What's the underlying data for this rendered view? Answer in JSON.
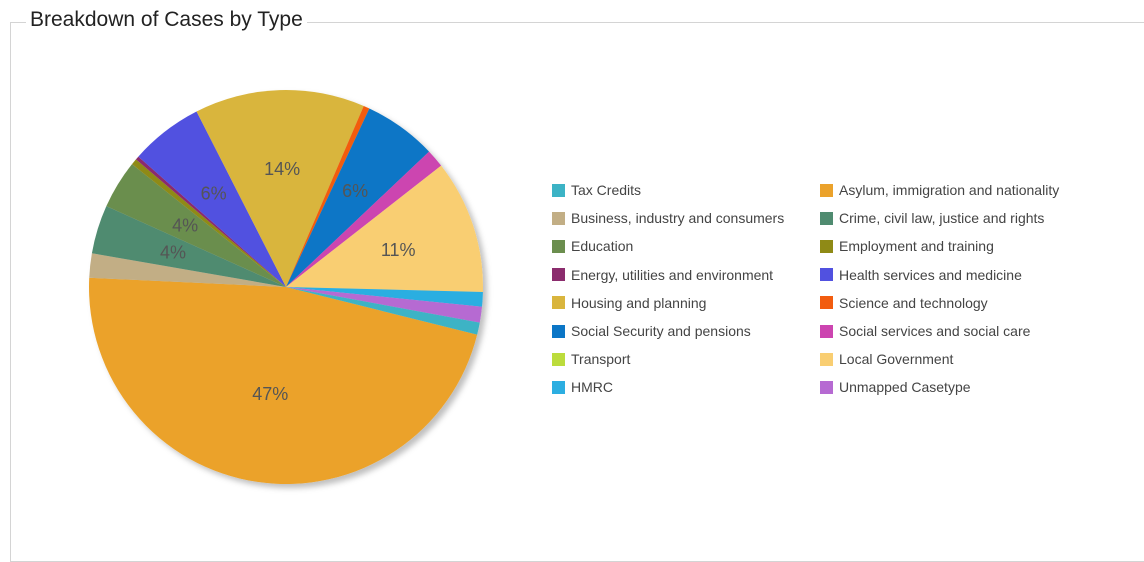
{
  "panel": {
    "title": "Breakdown of Cases by Type"
  },
  "chart_data": {
    "type": "pie",
    "title": "Breakdown of Cases by Type",
    "legend_position": "right",
    "slices": [
      {
        "label": "Asylum, immigration and nationality",
        "value": 47,
        "color": "#EBA22B",
        "display": "47%"
      },
      {
        "label": "Business, industry and consumers",
        "value": 2,
        "color": "#C2AE85",
        "display": ""
      },
      {
        "label": "Crime, civil law, justice and rights",
        "value": 4,
        "color": "#4F8B70",
        "display": "4%"
      },
      {
        "label": "Education",
        "value": 4,
        "color": "#6B8E4E",
        "display": "4%"
      },
      {
        "label": "Employment and training",
        "value": 0.5,
        "color": "#8F8A16",
        "display": ""
      },
      {
        "label": "Energy, utilities and environment",
        "value": 0.3,
        "color": "#8B2C6D",
        "display": ""
      },
      {
        "label": "Health services and medicine",
        "value": 6,
        "color": "#5151E0",
        "display": "6%"
      },
      {
        "label": "Housing and planning",
        "value": 14,
        "color": "#D9B53D",
        "display": "14%"
      },
      {
        "label": "Science and technology",
        "value": 0.5,
        "color": "#F25C0F",
        "display": ""
      },
      {
        "label": "Social Security and pensions",
        "value": 6,
        "color": "#0B76C6",
        "display": "6%"
      },
      {
        "label": "Social services and social care",
        "value": 1.5,
        "color": "#CC44B0",
        "display": ""
      },
      {
        "label": "Transport",
        "value": 0,
        "color": "#BCDC3C",
        "display": ""
      },
      {
        "label": "Local Government",
        "value": 11,
        "color": "#F9CE72",
        "display": "11%"
      },
      {
        "label": "HMRC",
        "value": 1.2,
        "color": "#2CAEE1",
        "display": ""
      },
      {
        "label": "Unmapped Casetype",
        "value": 1.3,
        "color": "#B66AD2",
        "display": ""
      },
      {
        "label": "Tax Credits",
        "value": 1,
        "color": "#3CB3C5",
        "display": ""
      }
    ],
    "legend": [
      {
        "label": "Tax Credits",
        "color": "#3CB3C5"
      },
      {
        "label": "Asylum, immigration and nationality",
        "color": "#EBA22B"
      },
      {
        "label": "Business, industry and consumers",
        "color": "#C2AE85"
      },
      {
        "label": "Crime, civil law, justice and rights",
        "color": "#4F8B70"
      },
      {
        "label": "Education",
        "color": "#6B8E4E"
      },
      {
        "label": "Employment and training",
        "color": "#8F8A16"
      },
      {
        "label": "Energy, utilities and environment",
        "color": "#8B2C6D"
      },
      {
        "label": "Health services and medicine",
        "color": "#5151E0"
      },
      {
        "label": "Housing and planning",
        "color": "#D9B53D"
      },
      {
        "label": "Science and technology",
        "color": "#F25C0F"
      },
      {
        "label": "Social Security and pensions",
        "color": "#0B76C6"
      },
      {
        "label": "Social services and social care",
        "color": "#CC44B0"
      },
      {
        "label": "Transport",
        "color": "#BCDC3C"
      },
      {
        "label": "Local Government",
        "color": "#F9CE72"
      },
      {
        "label": "HMRC",
        "color": "#2CAEE1"
      },
      {
        "label": "Unmapped Casetype",
        "color": "#B66AD2"
      }
    ]
  }
}
